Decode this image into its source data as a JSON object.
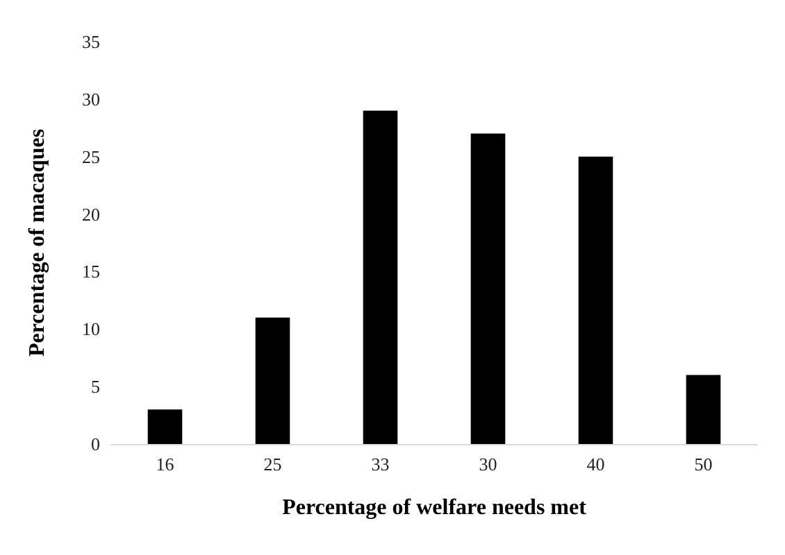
{
  "chart_data": {
    "type": "bar",
    "xlabel": "Percentage of welfare needs met",
    "ylabel": "Percentage of macaques",
    "categories": [
      "16",
      "25",
      "33",
      "30",
      "40",
      "50"
    ],
    "values": [
      3,
      11,
      29,
      27,
      25,
      6
    ],
    "color": "#000000",
    "ylim": [
      0,
      35
    ],
    "yticks": [
      0,
      5,
      10,
      15,
      20,
      25,
      30,
      35
    ],
    "grid": false
  }
}
